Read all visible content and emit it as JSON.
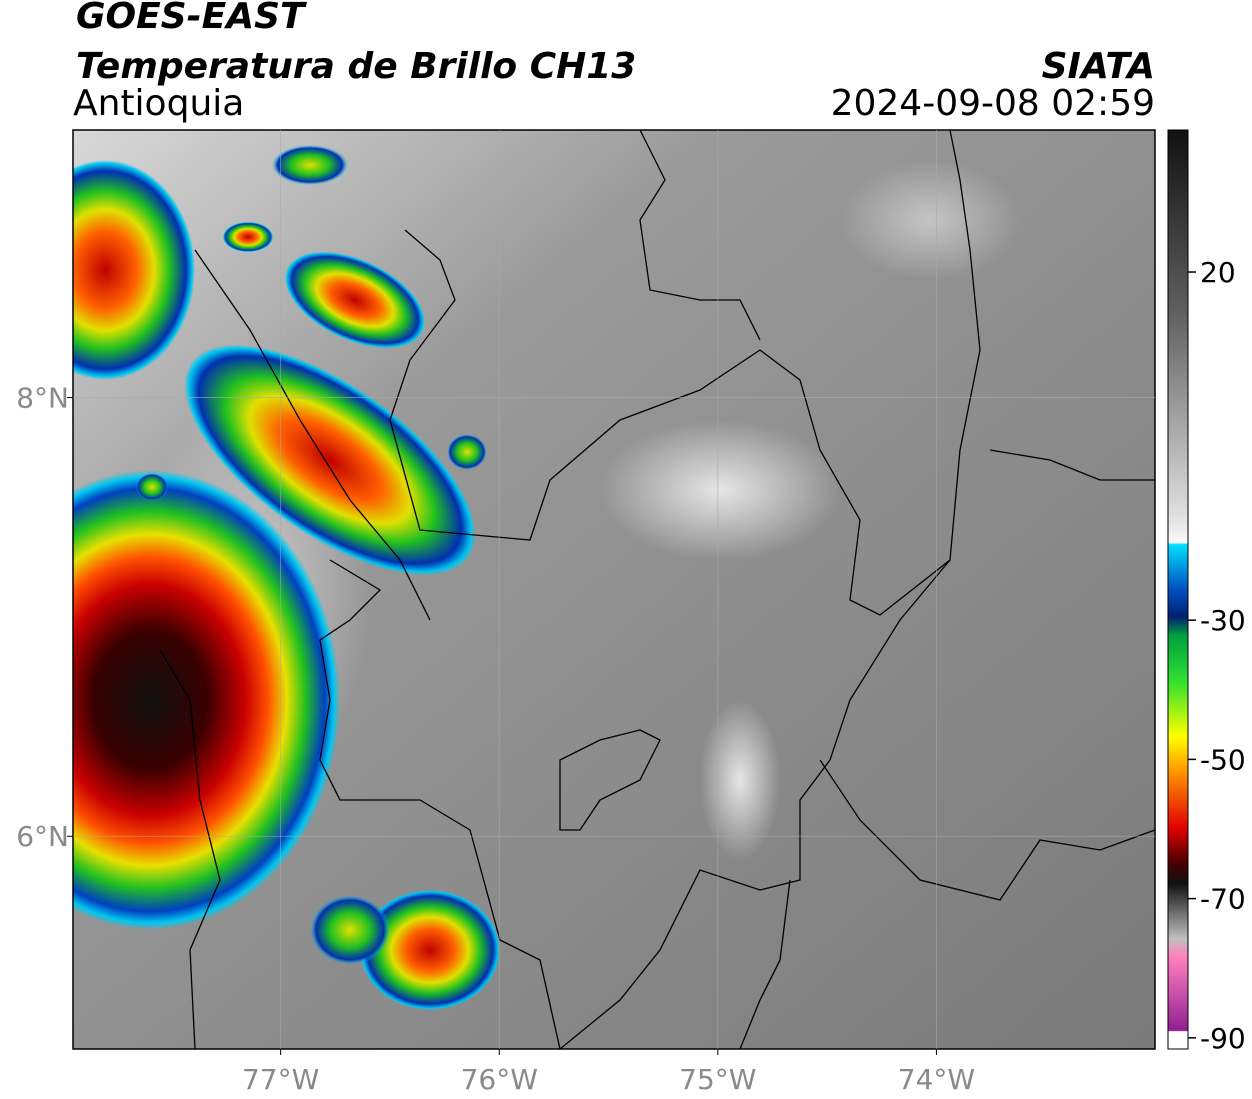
{
  "header": {
    "title": "GOES-EAST",
    "subtitle": "Temperatura de Brillo CH13",
    "region": "Antioquia",
    "source": "SIATA",
    "datetime": "2024-09-08 02:59"
  },
  "map": {
    "lonlim": [
      -77.95,
      -73.0
    ],
    "latlim": [
      5.03,
      9.22
    ],
    "lon_ticks": [
      {
        "value": -77,
        "label": "77°W"
      },
      {
        "value": -76,
        "label": "76°W"
      },
      {
        "value": -75,
        "label": "75°W"
      },
      {
        "value": -74,
        "label": "74°W"
      }
    ],
    "lat_ticks": [
      {
        "value": 8,
        "label": "8°N"
      },
      {
        "value": 6,
        "label": "6°N"
      }
    ]
  },
  "colorbar": {
    "lim": [
      -91.6,
      40.4
    ],
    "ticks": [
      20,
      -30,
      -50,
      -70,
      -90
    ]
  }
}
